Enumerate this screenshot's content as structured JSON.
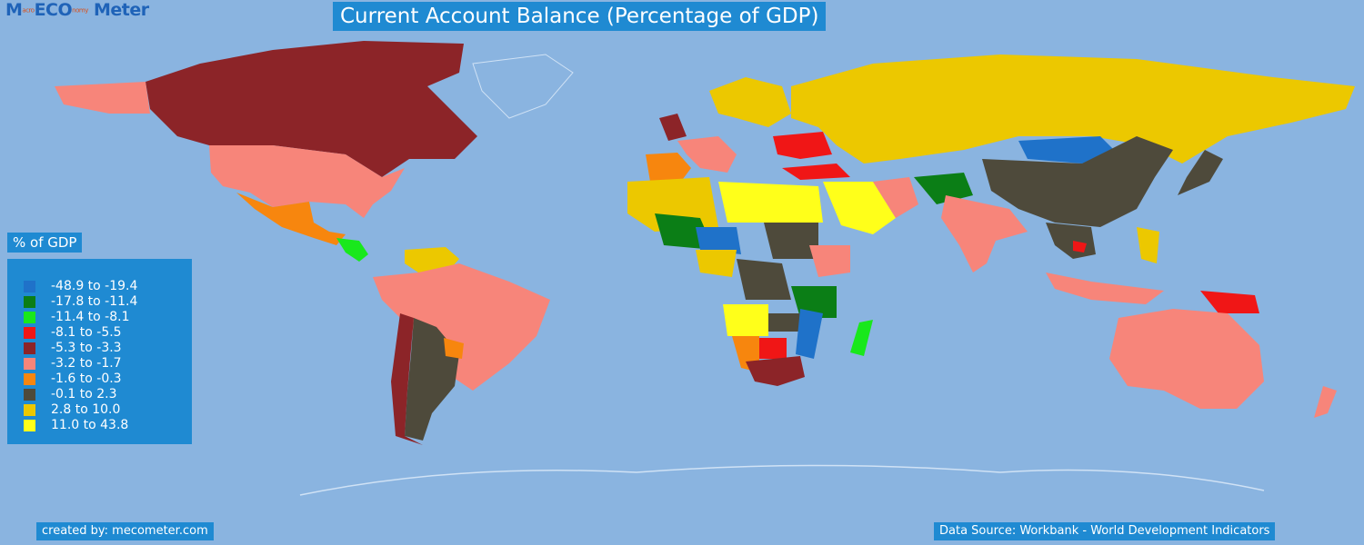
{
  "logo": {
    "part1": "M",
    "part2": "acro",
    "part3": "ECO",
    "part4": "nomy",
    "part5": "Meter"
  },
  "title": "Current Account Balance (Percentage of GDP)",
  "legend": {
    "title": "% of GDP",
    "items": [
      {
        "label": "-48.9 to -19.4",
        "color": "#1f72c9"
      },
      {
        "label": "-17.8 to -11.4",
        "color": "#0b7e16"
      },
      {
        "label": "-11.4 to -8.1",
        "color": "#19e81c"
      },
      {
        "label": "-8.1 to -5.5",
        "color": "#f01616"
      },
      {
        "label": "-5.3 to -3.3",
        "color": "#8c2428"
      },
      {
        "label": "-3.2 to -1.7",
        "color": "#f7857a"
      },
      {
        "label": "-1.6 to -0.3",
        "color": "#f7860e"
      },
      {
        "label": "-0.1 to 2.3",
        "color": "#4e4a3b"
      },
      {
        "label": "2.8 to 10.0",
        "color": "#ecc800"
      },
      {
        "label": "11.0 to 43.8",
        "color": "#ffff1a"
      }
    ]
  },
  "footer": {
    "created_by": "created by: mecometer.com",
    "source": "Data Source: Workbank - World Development Indicators"
  },
  "colors": {
    "ocean": "#8ab4e0",
    "panel": "#1f8ad2"
  }
}
